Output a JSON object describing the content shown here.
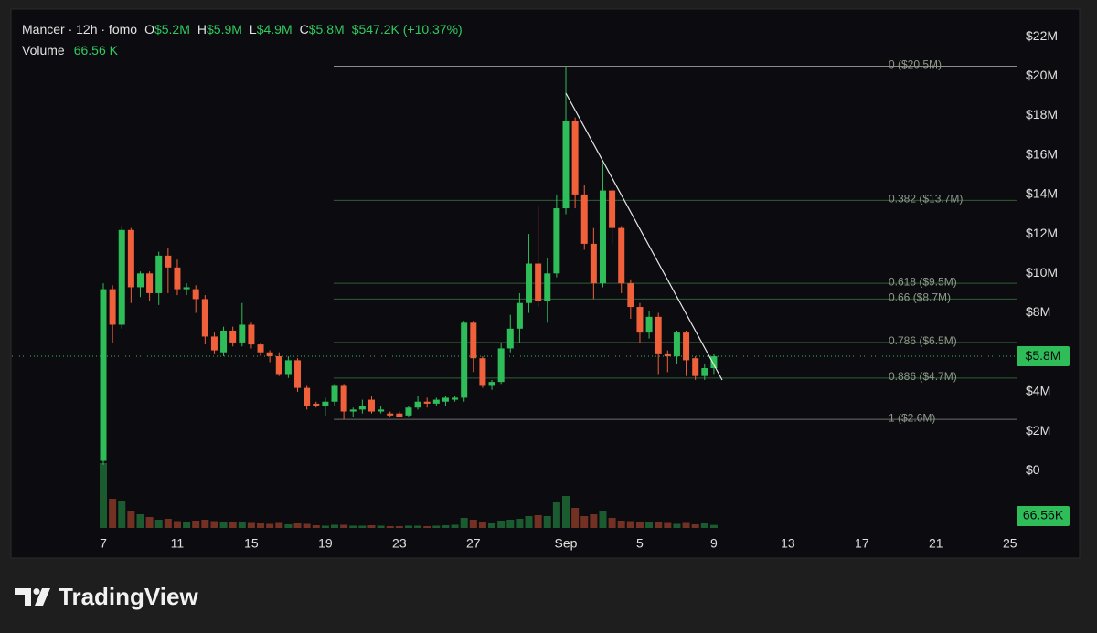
{
  "legend": {
    "symbol": "Mancer · 12h · fomo",
    "o_key": "O",
    "o": "$5.2M",
    "h_key": "H",
    "h": "$5.9M",
    "l_key": "L",
    "l": "$4.9M",
    "c_key": "C",
    "c": "$5.8M",
    "change": "$547.2K (+10.37%)",
    "volume_key": "Volume",
    "volume": "66.56 K"
  },
  "branding": "TradingView",
  "chart_data": {
    "type": "candlestick",
    "grid": false,
    "up_color": "#2ebd59",
    "down_color": "#f0603a",
    "categories": [
      "7",
      null,
      null,
      null,
      null,
      null,
      null,
      null,
      "11",
      null,
      null,
      null,
      null,
      null,
      null,
      null,
      "15",
      null,
      null,
      null,
      null,
      null,
      null,
      null,
      "19",
      null,
      null,
      null,
      null,
      null,
      null,
      null,
      "23",
      null,
      null,
      null,
      null,
      null,
      null,
      null,
      "27",
      null,
      null,
      null,
      null,
      null,
      null,
      null,
      null,
      null,
      "Sep",
      null,
      null,
      null,
      null,
      null,
      null,
      null,
      "5",
      null,
      null,
      null,
      null,
      null,
      null,
      null,
      "9",
      null,
      null,
      null,
      null,
      null,
      null,
      null,
      "13",
      null,
      null,
      null,
      null,
      null,
      null,
      null,
      "17",
      null,
      null,
      null,
      null,
      null,
      null,
      null,
      "21",
      null,
      null,
      null,
      null,
      null,
      null,
      null,
      "25"
    ],
    "open": [
      0.5,
      9.2,
      7.4,
      12.2,
      9.3,
      10.0,
      9.0,
      10.9,
      10.3,
      9.2,
      9.2,
      8.7,
      6.8,
      6.0,
      7.1,
      6.5,
      7.4,
      6.4,
      6.0,
      5.8,
      4.9,
      5.6,
      4.2,
      3.4,
      3.3,
      3.5,
      4.3,
      3.0,
      3.1,
      3.6,
      3.0,
      2.9,
      2.9,
      2.8,
      3.2,
      3.5,
      3.4,
      3.5,
      3.6,
      3.7,
      7.5,
      5.7,
      4.3,
      4.5,
      6.2,
      7.2,
      8.5,
      10.5,
      8.6,
      10.0,
      13.3,
      17.7,
      14.0,
      11.5,
      9.5,
      14.2,
      12.3,
      9.5,
      8.3,
      7.0,
      7.8,
      5.9,
      5.8,
      7.0,
      5.7,
      4.8,
      5.2,
      null,
      null,
      null,
      null,
      null,
      null,
      null,
      null,
      null,
      null,
      null,
      null,
      null,
      null,
      null,
      null,
      null,
      null,
      null,
      null,
      null,
      null,
      null,
      null,
      null,
      null,
      null,
      null,
      null,
      null,
      null,
      null
    ],
    "high": [
      9.5,
      9.4,
      12.4,
      12.3,
      10.1,
      10.1,
      11.1,
      11.3,
      10.7,
      9.5,
      9.4,
      8.9,
      7.0,
      7.3,
      7.3,
      8.5,
      7.5,
      6.5,
      6.1,
      6.0,
      5.8,
      5.7,
      4.3,
      3.5,
      3.7,
      4.4,
      4.4,
      3.2,
      3.6,
      3.8,
      3.3,
      3.0,
      3.0,
      3.3,
      3.8,
      3.7,
      3.7,
      3.8,
      3.8,
      7.6,
      7.6,
      5.8,
      4.6,
      6.5,
      7.9,
      9.0,
      12.0,
      13.4,
      10.8,
      14.0,
      20.5,
      17.9,
      14.5,
      12.3,
      15.6,
      14.3,
      12.4,
      9.7,
      8.5,
      8.1,
      8.0,
      6.1,
      7.1,
      7.1,
      5.8,
      5.4,
      5.9,
      null,
      null,
      null,
      null,
      null,
      null,
      null,
      null,
      null,
      null,
      null,
      null,
      null,
      null,
      null,
      null,
      null,
      null,
      null,
      null,
      null,
      null,
      null,
      null,
      null,
      null,
      null,
      null,
      null,
      null,
      null,
      null
    ],
    "low": [
      0.3,
      6.5,
      7.2,
      8.5,
      8.8,
      8.6,
      8.4,
      9.0,
      8.9,
      8.9,
      8.0,
      6.4,
      5.9,
      5.8,
      6.3,
      6.3,
      6.2,
      5.8,
      5.5,
      4.8,
      4.7,
      4.0,
      3.1,
      3.2,
      2.8,
      3.3,
      2.6,
      2.7,
      2.9,
      2.9,
      2.9,
      2.7,
      2.7,
      2.7,
      3.1,
      3.2,
      3.3,
      3.3,
      3.5,
      3.5,
      5.0,
      4.2,
      4.1,
      4.4,
      6.0,
      6.5,
      8.0,
      8.3,
      7.5,
      9.8,
      13.0,
      13.3,
      11.2,
      8.7,
      9.3,
      11.5,
      9.0,
      7.7,
      6.5,
      6.7,
      4.9,
      5.0,
      5.4,
      4.8,
      4.6,
      4.6,
      4.9,
      null,
      null,
      null,
      null,
      null,
      null,
      null,
      null,
      null,
      null,
      null,
      null,
      null,
      null,
      null,
      null,
      null,
      null,
      null,
      null,
      null,
      null,
      null,
      null,
      null,
      null,
      null,
      null,
      null,
      null,
      null,
      null
    ],
    "close": [
      9.2,
      7.4,
      12.2,
      9.3,
      10.0,
      9.0,
      10.9,
      10.3,
      9.2,
      9.3,
      8.7,
      6.8,
      6.1,
      7.1,
      6.5,
      7.4,
      6.4,
      6.0,
      5.8,
      4.9,
      5.6,
      4.2,
      3.3,
      3.3,
      3.5,
      4.3,
      3.0,
      3.1,
      3.3,
      3.0,
      3.1,
      2.8,
      2.7,
      3.2,
      3.5,
      3.4,
      3.6,
      3.7,
      3.7,
      7.5,
      5.7,
      4.3,
      4.5,
      6.2,
      7.2,
      8.5,
      10.5,
      8.6,
      10.0,
      13.3,
      17.7,
      14.0,
      11.5,
      9.5,
      14.2,
      12.3,
      9.5,
      8.3,
      7.0,
      7.8,
      5.9,
      5.8,
      7.0,
      5.6,
      4.8,
      5.2,
      5.8,
      null,
      null,
      null,
      null,
      null,
      null,
      null,
      null,
      null,
      null,
      null,
      null,
      null,
      null,
      null,
      null,
      null,
      null,
      null,
      null,
      null,
      null,
      null,
      null,
      null,
      null,
      null,
      null,
      null,
      null,
      null,
      null
    ],
    "volume": [
      1420,
      640,
      600,
      380,
      300,
      240,
      180,
      200,
      150,
      140,
      160,
      180,
      150,
      140,
      120,
      130,
      110,
      100,
      90,
      110,
      80,
      100,
      90,
      60,
      50,
      70,
      70,
      50,
      50,
      60,
      50,
      40,
      40,
      50,
      50,
      40,
      50,
      60,
      70,
      220,
      180,
      140,
      100,
      160,
      180,
      200,
      260,
      280,
      260,
      560,
      700,
      440,
      260,
      300,
      380,
      220,
      160,
      150,
      140,
      120,
      140,
      110,
      90,
      110,
      80,
      100,
      66.56,
      null,
      null,
      null,
      null,
      null,
      null,
      null,
      null,
      null,
      null,
      null,
      null,
      null,
      null,
      null,
      null,
      null,
      null,
      null,
      null,
      null,
      null,
      null,
      null,
      null,
      null,
      null,
      null,
      null,
      null,
      null,
      null
    ],
    "ylim": [
      -2.9,
      23.3
    ],
    "yticks": [
      {
        "value": 0,
        "label": "$0"
      },
      {
        "value": 2,
        "label": "$2M"
      },
      {
        "value": 4,
        "label": "$4M"
      },
      {
        "value": 6,
        "label": "$6M"
      },
      {
        "value": 8,
        "label": "$8M"
      },
      {
        "value": 10,
        "label": "$10M"
      },
      {
        "value": 12,
        "label": "$12M"
      },
      {
        "value": 14,
        "label": "$14M"
      },
      {
        "value": 16,
        "label": "$16M"
      },
      {
        "value": 18,
        "label": "$18M"
      },
      {
        "value": 20,
        "label": "$20M"
      },
      {
        "value": 22,
        "label": "$22M"
      }
    ],
    "volume_ylim": [
      0,
      1600
    ],
    "last_price": {
      "value": 5.8,
      "label": "$5.8M"
    },
    "volume_badge": "66.56K",
    "fib_levels": [
      {
        "label": "0 ($20.5M)",
        "value": 20.5,
        "color": "#8c8c8c"
      },
      {
        "label": "0.382 ($13.7M)",
        "value": 13.7,
        "color": "#2f5e36"
      },
      {
        "label": "0.618 ($9.5M)",
        "value": 9.5,
        "color": "#2f5e36"
      },
      {
        "label": "0.66 ($8.7M)",
        "value": 8.7,
        "color": "#2f5e36"
      },
      {
        "label": "0.786 ($6.5M)",
        "value": 6.5,
        "color": "#2f5e36"
      },
      {
        "label": "0.886 ($4.7M)",
        "value": 4.7,
        "color": "#2f5e36"
      },
      {
        "label": "1 ($2.6M)",
        "value": 2.6,
        "color": "#6e6e6e"
      }
    ]
  }
}
